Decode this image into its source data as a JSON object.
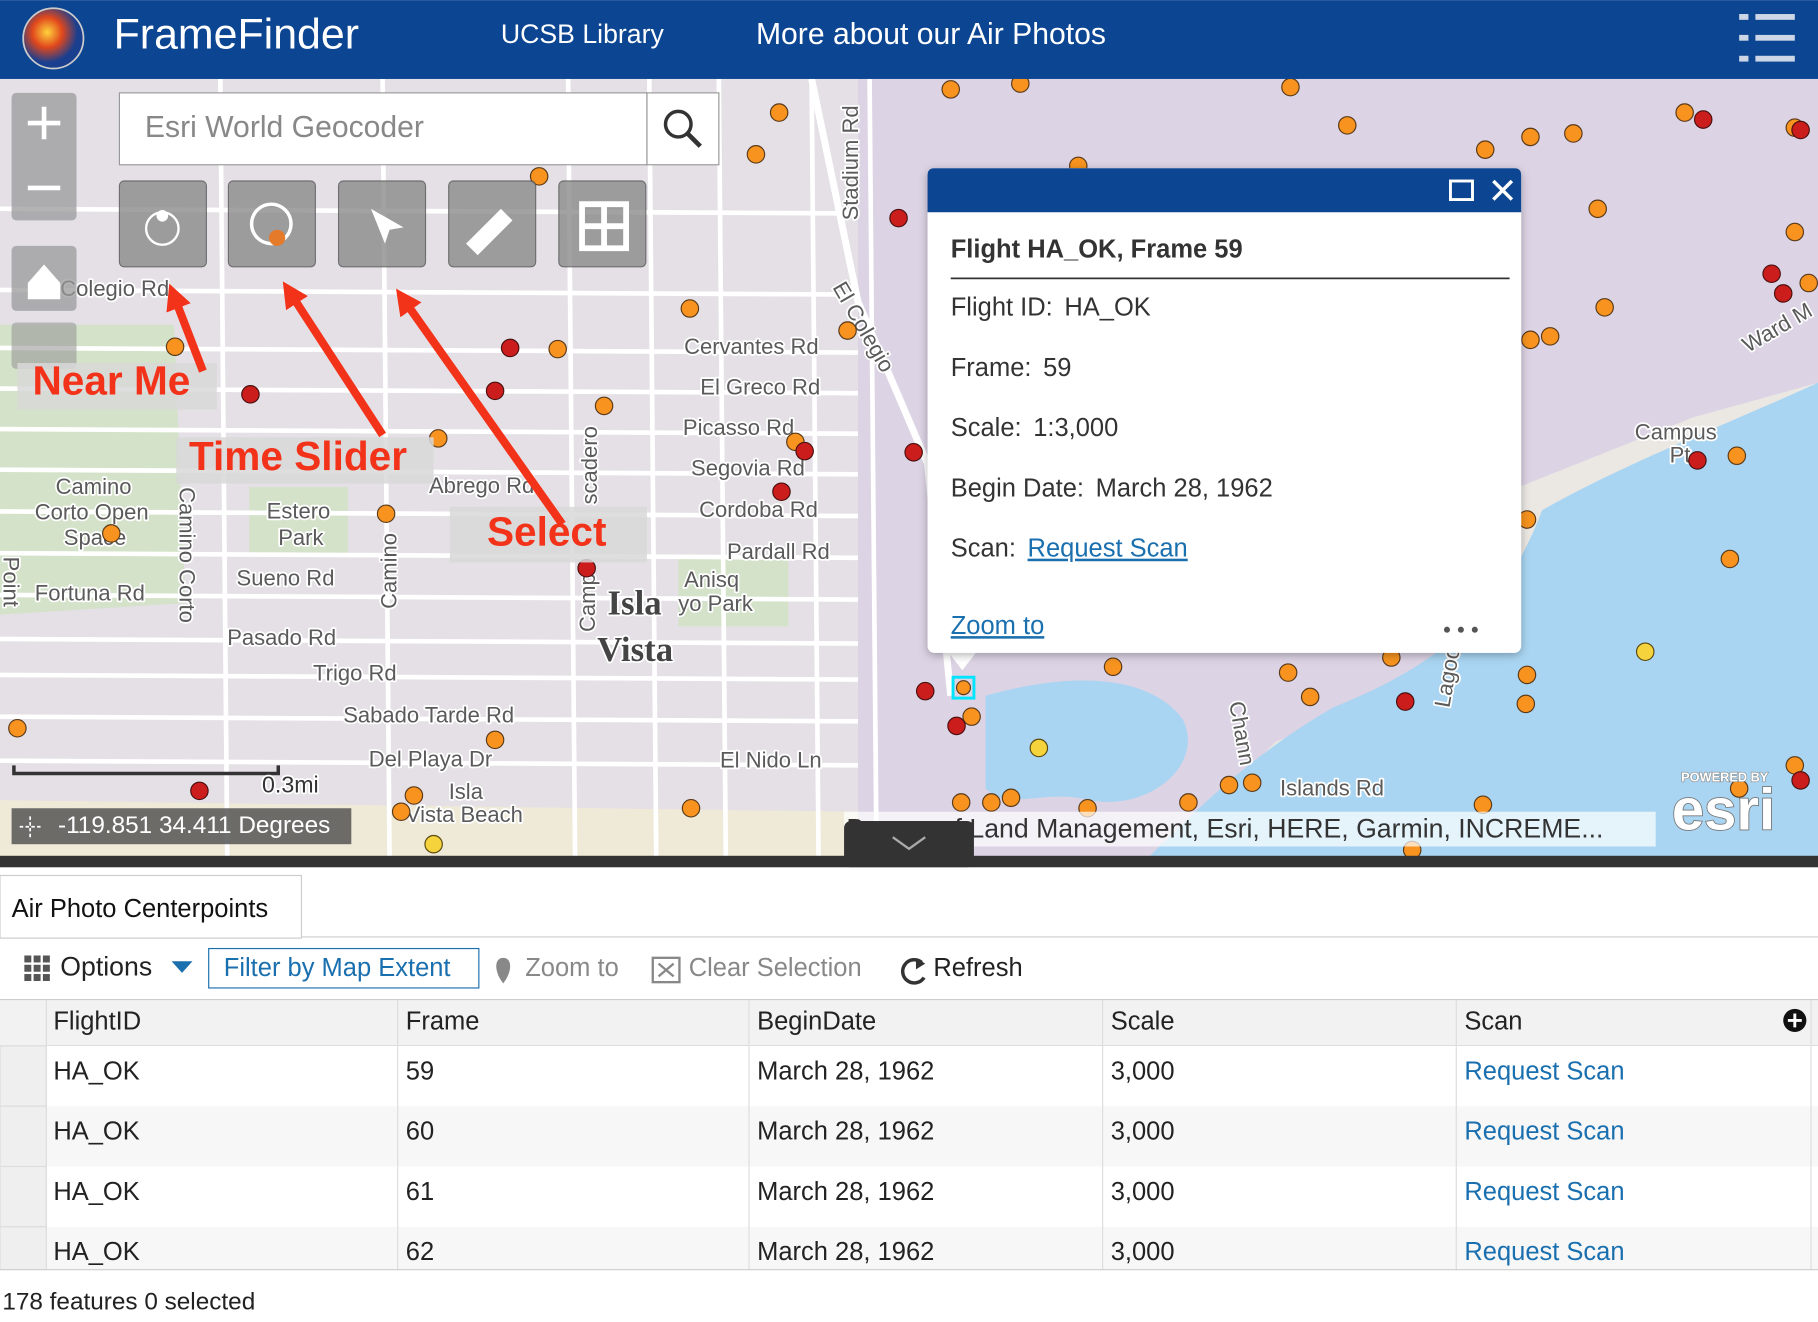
{
  "header": {
    "title": "FrameFinder",
    "nav": [
      "UCSB Library",
      "More about our Air Photos"
    ]
  },
  "search": {
    "placeholder": "Esri World Geocoder"
  },
  "annotations": [
    "Near Me",
    "Time Slider",
    "Select"
  ],
  "map": {
    "labels": [
      "Colegio Rd",
      "Cervantes Rd",
      "El Greco Rd",
      "Picasso Rd",
      "Segovia Rd",
      "Cordoba Rd",
      "Pardall Rd",
      "Abrego Rd",
      "Camino",
      "Corto Open",
      "Space",
      "Estero",
      "Park",
      "Sueno Rd",
      "Fortuna Rd",
      "Pasado Rd",
      "Trigo Rd",
      "Sabado Tarde Rd",
      "Del Playa Dr",
      "El Nido Ln",
      "Isla",
      "Vista",
      "Anisq",
      "yo Park",
      "Isla",
      "Vista Beach",
      "Islands Rd",
      "Campus",
      "Pt",
      "Stadium Rd",
      "El Colegio",
      "Ward M",
      "Camino Corto",
      "Camino",
      "scadero",
      "Camp",
      "Point",
      "Chann",
      "Lagoo"
    ],
    "scale": "0.3mi",
    "coordinates": "-119.851 34.411 Degrees",
    "attribution": "Bureau of Land Management, Esri, HERE, Garmin, INCREME...",
    "powered_by": "POWERED BY",
    "logo": "esri"
  },
  "popup": {
    "title": "Flight HA_OK, Frame 59",
    "fields": [
      {
        "label": "Flight ID:",
        "value": "HA_OK"
      },
      {
        "label": "Frame:",
        "value": "59"
      },
      {
        "label": "Scale:",
        "value": "1:3,000"
      },
      {
        "label": "Begin Date:",
        "value": "March 28, 1962"
      },
      {
        "label": "Scan:",
        "value": "Request Scan"
      }
    ],
    "zoom": "Zoom to"
  },
  "table": {
    "tab": "Air Photo Centerpoints",
    "toolbar": [
      "Options",
      "Filter by Map Extent",
      "Zoom to",
      "Clear Selection",
      "Refresh"
    ],
    "columns": [
      "FlightID",
      "Frame",
      "BeginDate",
      "Scale",
      "Scan"
    ],
    "rows": [
      [
        "HA_OK",
        59,
        "March 28, 1962",
        "3,000",
        "Request Scan"
      ],
      [
        "HA_OK",
        60,
        "March 28, 1962",
        "3,000",
        "Request Scan"
      ],
      [
        "HA_OK",
        61,
        "March 28, 1962",
        "3,000",
        "Request Scan"
      ],
      [
        "HA_OK",
        62,
        "March 28, 1962",
        "3,000",
        "Request Scan"
      ]
    ]
  },
  "footer": "178 features 0 selected"
}
